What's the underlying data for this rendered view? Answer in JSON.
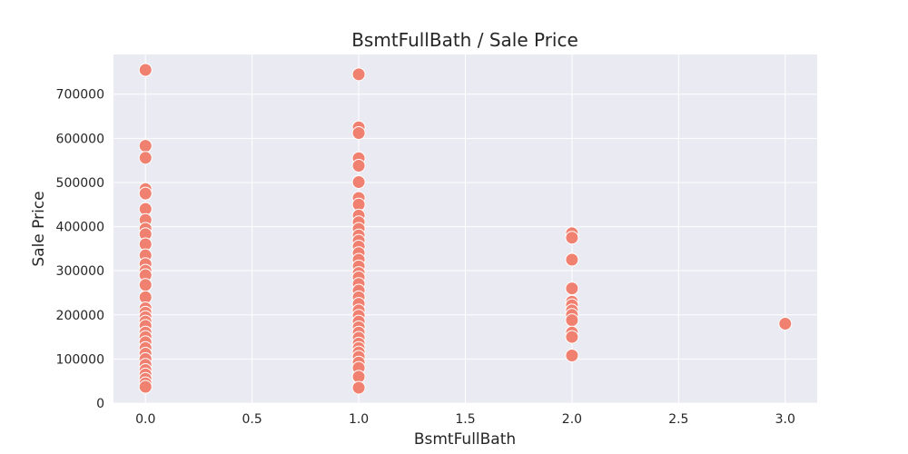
{
  "chart_data": {
    "type": "scatter",
    "title": "BsmtFullBath / Sale Price",
    "xlabel": "BsmtFullBath",
    "ylabel": "Sale Price",
    "xlim": [
      -0.15,
      3.15
    ],
    "ylim": [
      0,
      790000
    ],
    "x_ticks": [
      0.0,
      0.5,
      1.0,
      1.5,
      2.0,
      2.5,
      3.0
    ],
    "x_tick_labels": [
      "0.0",
      "0.5",
      "1.0",
      "1.5",
      "2.0",
      "2.5",
      "3.0"
    ],
    "y_ticks": [
      0,
      100000,
      200000,
      300000,
      400000,
      500000,
      600000,
      700000
    ],
    "y_tick_labels": [
      "0",
      "100000",
      "200000",
      "300000",
      "400000",
      "500000",
      "600000",
      "700000"
    ],
    "grid": true,
    "background": "#eaeaf2",
    "marker_color": "#f08070",
    "points": [
      {
        "x": 0,
        "y": 755000
      },
      {
        "x": 0,
        "y": 583000
      },
      {
        "x": 0,
        "y": 556000
      },
      {
        "x": 0,
        "y": 485000
      },
      {
        "x": 0,
        "y": 475000
      },
      {
        "x": 0,
        "y": 440000
      },
      {
        "x": 0,
        "y": 415000
      },
      {
        "x": 0,
        "y": 395000
      },
      {
        "x": 0,
        "y": 383000
      },
      {
        "x": 0,
        "y": 360000
      },
      {
        "x": 0,
        "y": 335000
      },
      {
        "x": 0,
        "y": 315000
      },
      {
        "x": 0,
        "y": 300000
      },
      {
        "x": 0,
        "y": 290000
      },
      {
        "x": 0,
        "y": 268000
      },
      {
        "x": 0,
        "y": 240000
      },
      {
        "x": 0,
        "y": 215000
      },
      {
        "x": 0,
        "y": 205000
      },
      {
        "x": 0,
        "y": 195000
      },
      {
        "x": 0,
        "y": 185000
      },
      {
        "x": 0,
        "y": 175000
      },
      {
        "x": 0,
        "y": 160000
      },
      {
        "x": 0,
        "y": 150000
      },
      {
        "x": 0,
        "y": 138000
      },
      {
        "x": 0,
        "y": 125000
      },
      {
        "x": 0,
        "y": 112000
      },
      {
        "x": 0,
        "y": 100000
      },
      {
        "x": 0,
        "y": 87000
      },
      {
        "x": 0,
        "y": 75000
      },
      {
        "x": 0,
        "y": 65000
      },
      {
        "x": 0,
        "y": 55000
      },
      {
        "x": 0,
        "y": 45000
      },
      {
        "x": 0,
        "y": 37000
      },
      {
        "x": 1,
        "y": 745000
      },
      {
        "x": 1,
        "y": 625000
      },
      {
        "x": 1,
        "y": 612000
      },
      {
        "x": 1,
        "y": 555000
      },
      {
        "x": 1,
        "y": 538000
      },
      {
        "x": 1,
        "y": 501000
      },
      {
        "x": 1,
        "y": 465000
      },
      {
        "x": 1,
        "y": 450000
      },
      {
        "x": 1,
        "y": 425000
      },
      {
        "x": 1,
        "y": 410000
      },
      {
        "x": 1,
        "y": 395000
      },
      {
        "x": 1,
        "y": 380000
      },
      {
        "x": 1,
        "y": 368000
      },
      {
        "x": 1,
        "y": 355000
      },
      {
        "x": 1,
        "y": 340000
      },
      {
        "x": 1,
        "y": 325000
      },
      {
        "x": 1,
        "y": 310000
      },
      {
        "x": 1,
        "y": 295000
      },
      {
        "x": 1,
        "y": 285000
      },
      {
        "x": 1,
        "y": 270000
      },
      {
        "x": 1,
        "y": 255000
      },
      {
        "x": 1,
        "y": 240000
      },
      {
        "x": 1,
        "y": 225000
      },
      {
        "x": 1,
        "y": 210000
      },
      {
        "x": 1,
        "y": 198000
      },
      {
        "x": 1,
        "y": 185000
      },
      {
        "x": 1,
        "y": 172000
      },
      {
        "x": 1,
        "y": 160000
      },
      {
        "x": 1,
        "y": 148000
      },
      {
        "x": 1,
        "y": 135000
      },
      {
        "x": 1,
        "y": 125000
      },
      {
        "x": 1,
        "y": 115000
      },
      {
        "x": 1,
        "y": 105000
      },
      {
        "x": 1,
        "y": 92000
      },
      {
        "x": 1,
        "y": 80000
      },
      {
        "x": 1,
        "y": 60000
      },
      {
        "x": 1,
        "y": 35000
      },
      {
        "x": 2,
        "y": 385000
      },
      {
        "x": 2,
        "y": 375000
      },
      {
        "x": 2,
        "y": 325000
      },
      {
        "x": 2,
        "y": 260000
      },
      {
        "x": 2,
        "y": 230000
      },
      {
        "x": 2,
        "y": 222000
      },
      {
        "x": 2,
        "y": 210000
      },
      {
        "x": 2,
        "y": 200000
      },
      {
        "x": 2,
        "y": 188000
      },
      {
        "x": 2,
        "y": 160000
      },
      {
        "x": 2,
        "y": 150000
      },
      {
        "x": 2,
        "y": 108000
      },
      {
        "x": 3,
        "y": 180000
      }
    ]
  }
}
